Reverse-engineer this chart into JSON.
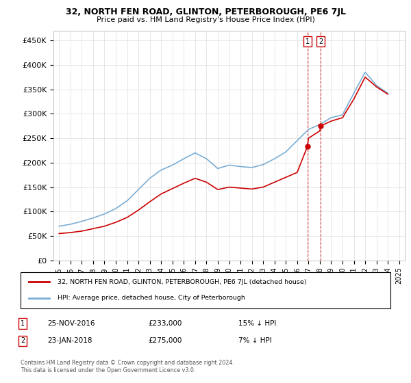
{
  "title": "32, NORTH FEN ROAD, GLINTON, PETERBOROUGH, PE6 7JL",
  "subtitle": "Price paid vs. HM Land Registry's House Price Index (HPI)",
  "legend_line1": "32, NORTH FEN ROAD, GLINTON, PETERBOROUGH, PE6 7JL (detached house)",
  "legend_line2": "HPI: Average price, detached house, City of Peterborough",
  "footnote": "Contains HM Land Registry data © Crown copyright and database right 2024.\nThis data is licensed under the Open Government Licence v3.0.",
  "sale1_date": "25-NOV-2016",
  "sale1_price": "£233,000",
  "sale1_hpi": "15% ↓ HPI",
  "sale2_date": "23-JAN-2018",
  "sale2_price": "£275,000",
  "sale2_hpi": "7% ↓ HPI",
  "sale1_x": 2016.9,
  "sale1_y": 233000,
  "sale2_x": 2018.07,
  "sale2_y": 275000,
  "hpi_color": "#7aadd4",
  "price_color": "#cc0000",
  "sale_vline_color": "#cc0000",
  "ylim": [
    0,
    470000
  ],
  "xlim": [
    1994.5,
    2025.5
  ],
  "yticks": [
    0,
    50000,
    100000,
    150000,
    200000,
    250000,
    300000,
    350000,
    400000,
    450000
  ],
  "ytick_labels": [
    "£0",
    "£50K",
    "£100K",
    "£150K",
    "£200K",
    "£250K",
    "£300K",
    "£350K",
    "£400K",
    "£450K"
  ],
  "xticks": [
    1995,
    1996,
    1997,
    1998,
    1999,
    2000,
    2001,
    2002,
    2003,
    2004,
    2005,
    2006,
    2007,
    2008,
    2009,
    2010,
    2011,
    2012,
    2013,
    2014,
    2015,
    2016,
    2017,
    2018,
    2019,
    2020,
    2021,
    2022,
    2023,
    2024,
    2025
  ],
  "background_color": "#ffffff",
  "grid_color": "#dddddd",
  "hpi_years": [
    1995,
    1996,
    1997,
    1998,
    1999,
    2000,
    2001,
    2002,
    2003,
    2004,
    2005,
    2006,
    2007,
    2008,
    2009,
    2010,
    2011,
    2012,
    2013,
    2014,
    2015,
    2016,
    2017,
    2018,
    2019,
    2020,
    2021,
    2022,
    2023,
    2024
  ],
  "hpi_values": [
    70000,
    74000,
    80000,
    87000,
    95000,
    106000,
    122000,
    145000,
    168000,
    185000,
    195000,
    208000,
    220000,
    208000,
    188000,
    195000,
    192000,
    190000,
    196000,
    208000,
    222000,
    245000,
    268000,
    278000,
    292000,
    298000,
    342000,
    385000,
    358000,
    342000
  ],
  "price_years": [
    1995,
    1996,
    1997,
    1998,
    1999,
    2000,
    2001,
    2002,
    2003,
    2004,
    2005,
    2006,
    2007,
    2008,
    2009,
    2010,
    2011,
    2012,
    2013,
    2014,
    2015,
    2016,
    2016.9,
    2017,
    2018,
    2018.07,
    2019,
    2020,
    2021,
    2022,
    2023,
    2024
  ],
  "price_values": [
    55000,
    57000,
    60000,
    65000,
    70000,
    78000,
    88000,
    103000,
    120000,
    136000,
    147000,
    158000,
    168000,
    160000,
    145000,
    150000,
    148000,
    146000,
    150000,
    160000,
    170000,
    180000,
    233000,
    250000,
    265000,
    275000,
    285000,
    292000,
    330000,
    375000,
    355000,
    340000
  ]
}
